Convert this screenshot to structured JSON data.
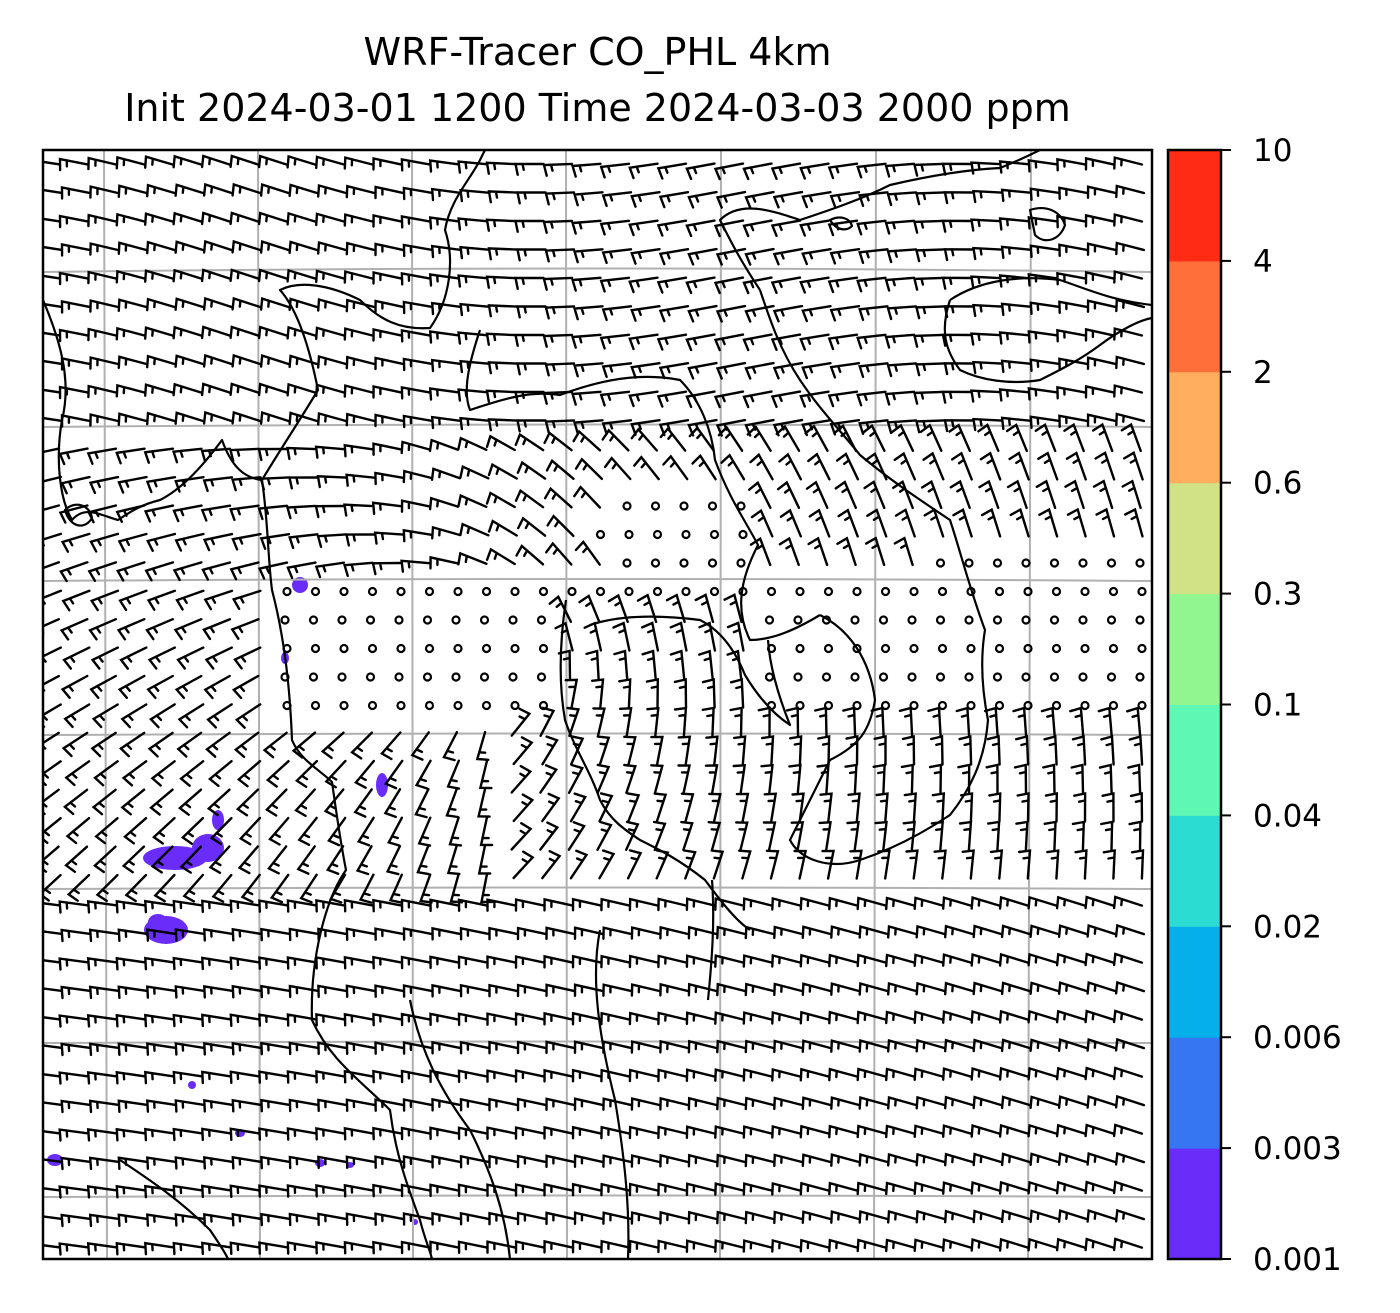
{
  "title": {
    "line1": "WRF-Tracer CO_PHL 4km",
    "line2": "Init 2024-03-01 1200 Time 2024-03-03 2000 ppm"
  },
  "colorbar": {
    "levels": [
      {
        "label": "0.001",
        "color": "#6A2CF9"
      },
      {
        "label": "0.003",
        "color": "#3676F2"
      },
      {
        "label": "0.006",
        "color": "#05AFE9"
      },
      {
        "label": "0.02",
        "color": "#2BDCD3"
      },
      {
        "label": "0.04",
        "color": "#5EF7B3"
      },
      {
        "label": "0.1",
        "color": "#92F690"
      },
      {
        "label": "0.3",
        "color": "#D0E186"
      },
      {
        "label": "0.6",
        "color": "#FFAE5F"
      },
      {
        "label": "2",
        "color": "#FF6F3A"
      },
      {
        "label": "4",
        "color": "#FF2B14"
      },
      {
        "label": "10",
        "color": null
      }
    ]
  },
  "map": {
    "grid": "on",
    "overlay": "wind-barbs",
    "tracer_color": "#6A2CF9"
  }
}
